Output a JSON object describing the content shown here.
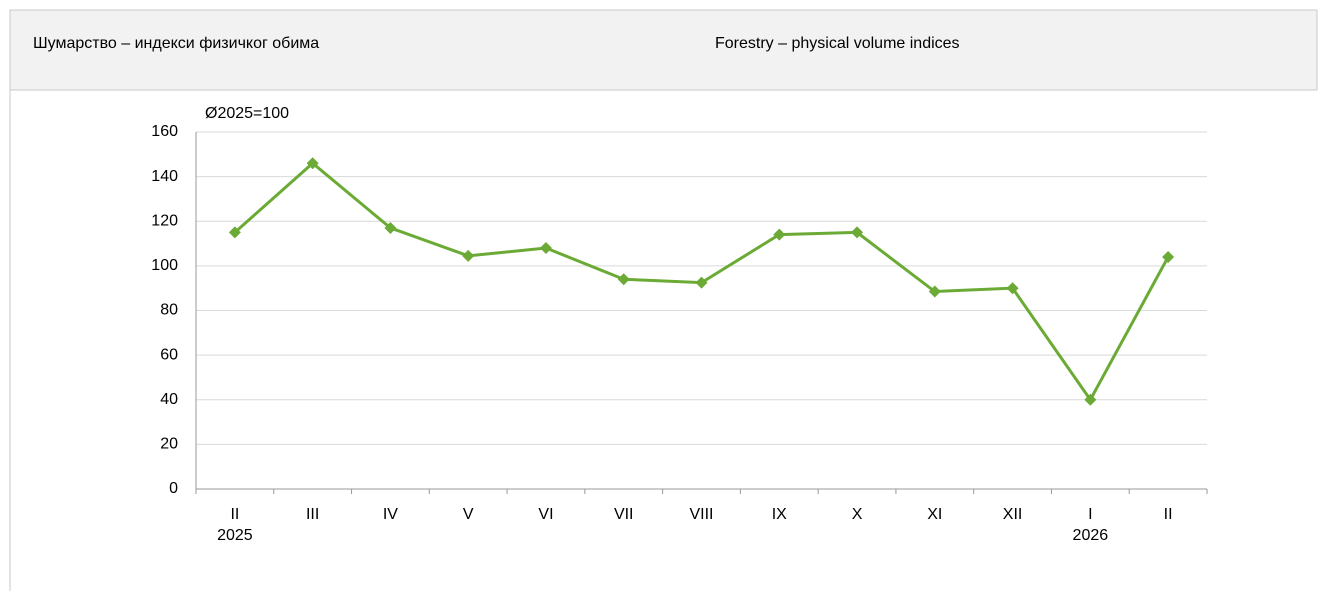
{
  "header": {
    "title_left": "Шумарство – индекси физичког обима",
    "title_right": "Forestry – physical volume indices"
  },
  "chart_data": {
    "type": "line",
    "y_label": "Ø2025=100",
    "categories": [
      "II",
      "III",
      "IV",
      "V",
      "VI",
      "VII",
      "VIII",
      "IX",
      "X",
      "XI",
      "XII",
      "I",
      "II"
    ],
    "category_years": [
      "2025",
      null,
      null,
      null,
      null,
      null,
      null,
      null,
      null,
      null,
      null,
      "2026",
      null
    ],
    "series": [
      {
        "name": "Forestry",
        "color": "#6aaa35",
        "values": [
          115,
          146,
          117,
          104.5,
          108,
          94,
          92.5,
          114,
          115,
          88.5,
          90,
          40,
          104
        ]
      }
    ],
    "ylim": [
      0,
      160
    ],
    "yticks": [
      0,
      20,
      40,
      60,
      80,
      100,
      120,
      140,
      160
    ],
    "grid": true
  }
}
